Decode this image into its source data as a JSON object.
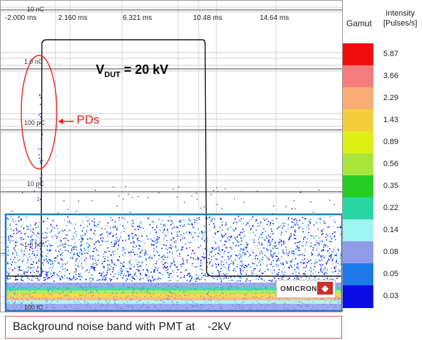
{
  "chart_data": {
    "type": "heatmap",
    "title": "",
    "x_tick_labels": [
      "-2.000 ms",
      "2.160 ms",
      "6.321 ms",
      "10.48 ms",
      "14.64 ms"
    ],
    "x_ticks_ms": [
      -2.0,
      2.16,
      6.321,
      10.48,
      14.64
    ],
    "xlim": [
      -2.0,
      18.0
    ],
    "y_scale": "log",
    "y_tick_labels": [
      "10 nC",
      "1.0 nC",
      "100 pC",
      "10 pC",
      "1.0 pC",
      "100 fC"
    ],
    "voltage_waveform": {
      "label_main": "V",
      "label_sub": "DUT",
      "label_value": " = 20 kV",
      "rise_ms": 0.0,
      "fall_ms": 12.0
    },
    "annotations": {
      "pds_label": "PDs",
      "caption": "Background noise band with PMT at    -2kV"
    },
    "legend": {
      "gamut_title": "Gamut",
      "intensity_title_line1": "Intensity",
      "intensity_title_line2": "[Pulses/s]",
      "levels": [
        {
          "value": "5.87",
          "color": "#f20d0d"
        },
        {
          "value": "3.66",
          "color": "#f57d7d"
        },
        {
          "value": "2.29",
          "color": "#f9ad74"
        },
        {
          "value": "1.43",
          "color": "#f4ce3a"
        },
        {
          "value": "0.89",
          "color": "#ddf016"
        },
        {
          "value": "0.56",
          "color": "#a8e63c"
        },
        {
          "value": "0.35",
          "color": "#24cc24"
        },
        {
          "value": "0.22",
          "color": "#28d6a4"
        },
        {
          "value": "0.14",
          "color": "#9ff4f4"
        },
        {
          "value": "0.08",
          "color": "#8e9cea"
        },
        {
          "value": "0.05",
          "color": "#1e7ae8"
        },
        {
          "value": "0.03",
          "color": "#0b0ce6"
        }
      ]
    },
    "highlight_colors": {
      "noise_band_box": "#1a7fc4",
      "pd_ellipse": "#e8201e"
    },
    "logo_text": "OMICRON"
  }
}
